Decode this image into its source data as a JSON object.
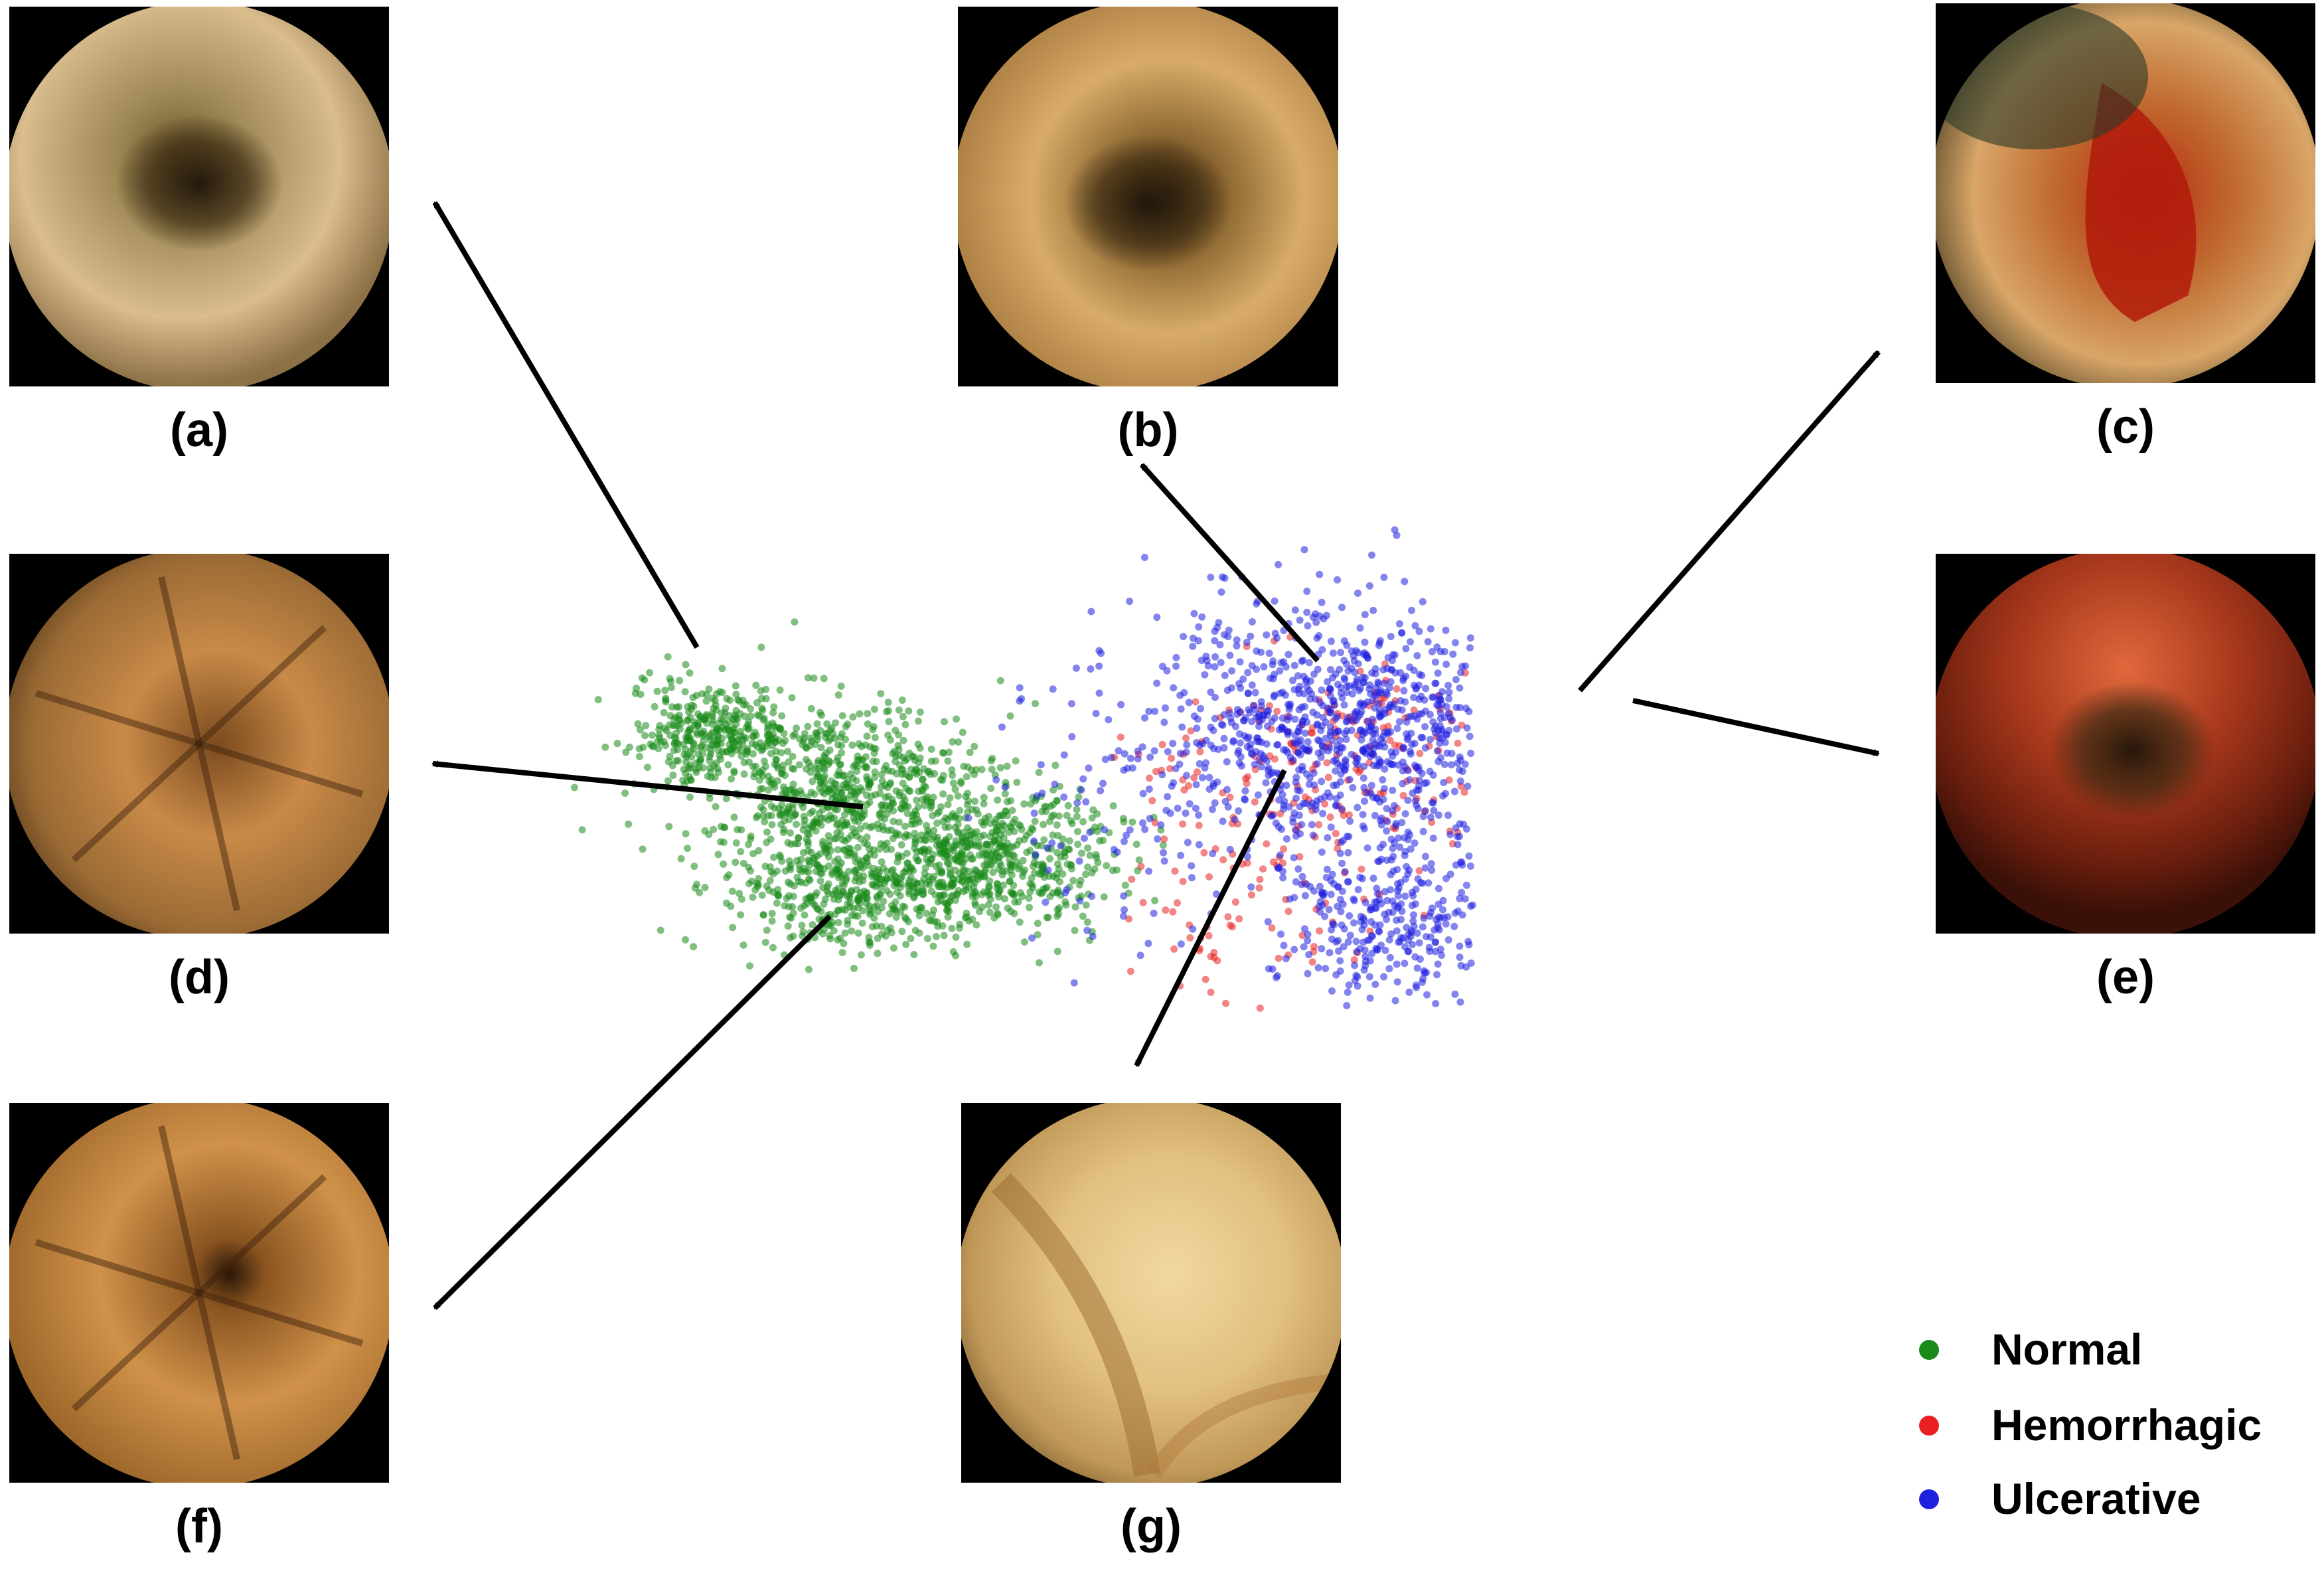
{
  "chart_data": {
    "type": "scatter",
    "title": "",
    "xlabel": "",
    "ylabel": "",
    "grid": false,
    "axes_visible": false,
    "legend_position": "bottom-right",
    "series": [
      {
        "name": "Normal",
        "color": "#1a8a1a",
        "clusters": [
          {
            "cx": 420,
            "cy": 480,
            "sx": 200,
            "sy": 110,
            "n": 650
          },
          {
            "cx": 640,
            "cy": 590,
            "sx": 180,
            "sy": 100,
            "n": 650
          },
          {
            "cx": 420,
            "cy": 645,
            "sx": 160,
            "sy": 80,
            "n": 380
          },
          {
            "cx": 230,
            "cy": 405,
            "sx": 110,
            "sy": 70,
            "n": 300
          }
        ]
      },
      {
        "name": "Hemorrhagic",
        "color": "#e82020",
        "clusters": [
          {
            "cx": 1540,
            "cy": 455,
            "sx": 95,
            "sy": 60,
            "n": 240
          },
          {
            "cx": 1150,
            "cy": 450,
            "sx": 250,
            "sy": 150,
            "n": 190
          },
          {
            "cx": 1050,
            "cy": 700,
            "sx": 180,
            "sy": 150,
            "n": 70
          }
        ]
      },
      {
        "name": "Ulcerative",
        "color": "#1f1fe0",
        "clusters": [
          {
            "cx": 1180,
            "cy": 390,
            "sx": 240,
            "sy": 170,
            "n": 900
          },
          {
            "cx": 1270,
            "cy": 680,
            "sx": 160,
            "sy": 120,
            "n": 350
          },
          {
            "cx": 880,
            "cy": 520,
            "sx": 220,
            "sy": 200,
            "n": 120
          }
        ]
      }
    ],
    "legend": [
      {
        "label": "Normal",
        "color": "#1a8a1a"
      },
      {
        "label": "Hemorrhagic",
        "color": "#e82020"
      },
      {
        "label": "Ulcerative",
        "color": "#1f1fe0"
      }
    ]
  },
  "panels": [
    {
      "id": "a",
      "label": "(a)",
      "tone": "pale-tan",
      "detail": "dark-lumen"
    },
    {
      "id": "b",
      "label": "(b)",
      "tone": "golden",
      "detail": "dark-lumen"
    },
    {
      "id": "c",
      "label": "(c)",
      "tone": "blood",
      "detail": "bleeding"
    },
    {
      "id": "d",
      "label": "(d)",
      "tone": "brown",
      "detail": "folds"
    },
    {
      "id": "e",
      "label": "(e)",
      "tone": "deep-red",
      "detail": "dark-lumen"
    },
    {
      "id": "f",
      "label": "(f)",
      "tone": "amber",
      "detail": "star-folds"
    },
    {
      "id": "g",
      "label": "(g)",
      "tone": "cream",
      "detail": "ulcer-fold"
    }
  ]
}
